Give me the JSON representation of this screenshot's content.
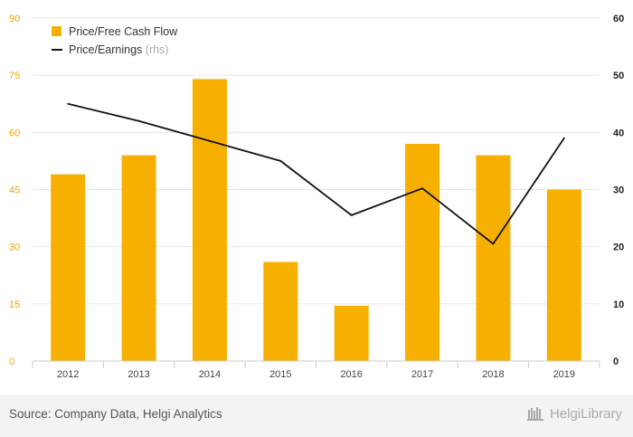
{
  "chart_data": {
    "type": "bar",
    "categories": [
      "2012",
      "2013",
      "2014",
      "2015",
      "2016",
      "2017",
      "2018",
      "2019"
    ],
    "series": [
      {
        "name": "Price/Free Cash Flow",
        "type": "bar",
        "axis": "left",
        "color": "#f8b000",
        "values": [
          49,
          54,
          74,
          26,
          14.5,
          57,
          54,
          45
        ]
      },
      {
        "name": "Price/Earnings",
        "name_suffix": "(rhs)",
        "type": "line",
        "axis": "right",
        "color": "#111111",
        "values": [
          45,
          42,
          38.5,
          35,
          25.5,
          30.2,
          20.5,
          39
        ]
      }
    ],
    "y_left": {
      "min": 0,
      "max": 90,
      "ticks": [
        0,
        15,
        30,
        45,
        60,
        75,
        90
      ]
    },
    "y_right": {
      "min": 0,
      "max": 60,
      "ticks": [
        0,
        10,
        20,
        30,
        40,
        50,
        60
      ]
    },
    "grid": true,
    "legend_position": "top-left",
    "colors": {
      "left_tick": "#f0a500",
      "right_tick": "#222222",
      "x_tick": "#444444",
      "grid": "#e6e6e6"
    }
  },
  "footer": {
    "source": "Source: Company Data, Helgi Analytics",
    "brand": "HelgiLibrary",
    "brand_icon": "library-logo-icon"
  }
}
